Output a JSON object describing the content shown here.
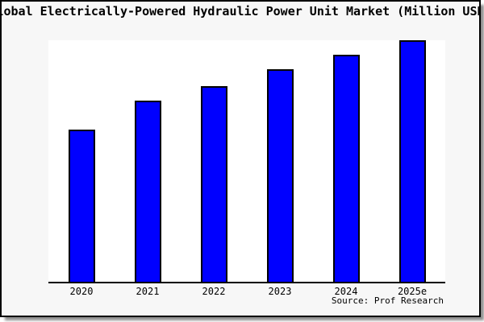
{
  "window": {
    "background_color": "#f7f7f7",
    "frame_border_color": "#000000",
    "plot_background_color": "#ffffff"
  },
  "source_label": "Source: Prof Research",
  "chart_data": {
    "type": "bar",
    "title": "Global Electrically-Powered Hydraulic Power Unit Market (Million USD)",
    "title_display_note": "title is wider than the frame and clipped at both left and right edges",
    "categories": [
      "2020",
      "2021",
      "2022",
      "2023",
      "2024",
      "2025e"
    ],
    "values": [
      63,
      75,
      81,
      88,
      94,
      100
    ],
    "values_note": "no y-axis ticks or data labels shown; values estimated from bar heights as percent of tallest (2025e) bar",
    "xlabel": "",
    "ylabel": "",
    "ylim": [
      0,
      100
    ],
    "grid": false,
    "legend": false,
    "bar_color": "#0000ff",
    "bar_border_color": "#000000",
    "axis_line_color": "#000000"
  }
}
